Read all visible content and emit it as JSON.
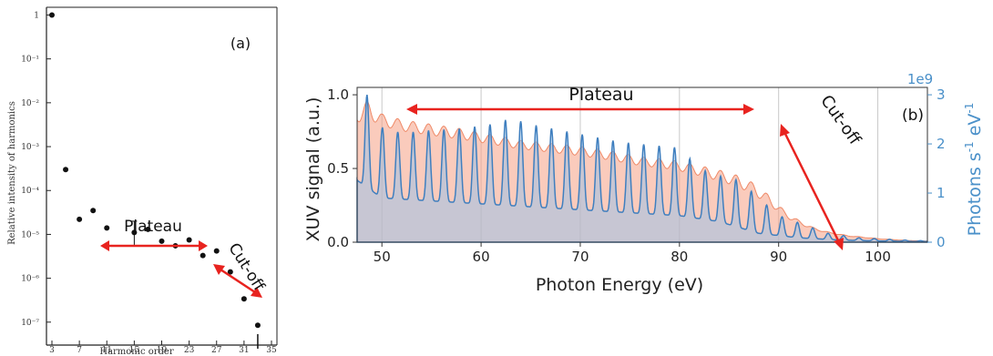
{
  "chart_data": [
    {
      "panel_label": "(a)",
      "type": "scatter",
      "ylabel": "Relative intensity of harmonics",
      "xlabel": "Harmonic order",
      "x_ticks": [
        "3",
        "7",
        "11",
        "15",
        "19",
        "23",
        "27",
        "31",
        "35"
      ],
      "y_ticks": [
        "1",
        "10⁻¹",
        "10⁻²",
        "10⁻³",
        "10⁻⁴",
        "10⁻⁵",
        "10⁻⁶",
        "10⁻⁷"
      ],
      "y_scale": "log",
      "xlim": [
        3,
        35
      ],
      "ylim": [
        3e-08,
        1.5
      ],
      "x": [
        3,
        5,
        7,
        9,
        11,
        15,
        17,
        19,
        21,
        23,
        25,
        27,
        29,
        31,
        33
      ],
      "y": [
        1,
        0.0003,
        2.2e-05,
        3.5e-05,
        1.4e-05,
        1.1e-05,
        1.3e-05,
        7e-06,
        5.5e-06,
        7.5e-06,
        3.3e-06,
        4.2e-06,
        1.4e-06,
        3.4e-07,
        8.5e-08
      ],
      "annotations": {
        "plateau": "Plateau",
        "cutoff": "Cut-off"
      }
    },
    {
      "panel_label": "(b)",
      "type": "area",
      "xlabel": "Photon Energy (eV)",
      "ylabel": "XUV signal (a.u.)",
      "y2label_main": "Photons s",
      "y2label_sup1": "-1",
      "y2label_mid": " eV",
      "y2label_sup2": "-1",
      "y2_offset_label": "1e9",
      "xlim": [
        47.5,
        105
      ],
      "ylim": [
        0,
        1.05
      ],
      "y2lim": [
        0,
        3.15
      ],
      "x_ticks": [
        50,
        60,
        70,
        80,
        90,
        100
      ],
      "y_ticks": [
        "0.0",
        "0.5",
        "1.0"
      ],
      "y2_ticks": [
        "0",
        "1",
        "2",
        "3"
      ],
      "grid": "vertical",
      "series": [
        {
          "color": "#f5a185",
          "envelope_x": [
            47.5,
            48.5,
            50,
            52,
            55,
            58,
            61,
            64,
            67,
            70,
            73,
            76,
            79,
            82,
            84,
            86,
            87.5,
            89,
            90.5,
            92,
            93.5,
            95,
            97,
            100,
            103,
            105
          ],
          "envelope_y": [
            0.92,
            0.96,
            0.87,
            0.83,
            0.8,
            0.77,
            0.73,
            0.69,
            0.67,
            0.65,
            0.62,
            0.58,
            0.56,
            0.52,
            0.49,
            0.45,
            0.4,
            0.32,
            0.22,
            0.15,
            0.1,
            0.07,
            0.045,
            0.025,
            0.012,
            0.008
          ],
          "baseline_x": [
            47.5,
            50,
            55,
            60,
            65,
            70,
            75,
            80,
            85,
            88,
            91,
            94,
            97,
            100,
            105
          ],
          "baseline_y": [
            0.55,
            0.6,
            0.55,
            0.52,
            0.49,
            0.44,
            0.39,
            0.34,
            0.22,
            0.13,
            0.07,
            0.05,
            0.03,
            0.015,
            0.005
          ]
        },
        {
          "color": "#5b9bd5",
          "peak_spacing": 1.55,
          "peak_start": 48.5,
          "peak_heights_x": [
            48.5,
            50,
            52,
            55,
            58,
            61,
            63,
            65,
            68,
            71,
            74,
            77,
            80,
            82,
            84,
            86,
            88,
            90,
            92.5,
            95,
            98,
            101,
            104
          ],
          "peak_heights_y": [
            1.0,
            0.78,
            0.74,
            0.76,
            0.77,
            0.8,
            0.84,
            0.8,
            0.76,
            0.72,
            0.68,
            0.66,
            0.64,
            0.5,
            0.45,
            0.42,
            0.3,
            0.18,
            0.12,
            0.06,
            0.03,
            0.02,
            0.01
          ],
          "trough_x": [
            47.5,
            50,
            55,
            60,
            65,
            70,
            75,
            80,
            84,
            88,
            92,
            96,
            100,
            105
          ],
          "trough_y": [
            0.42,
            0.3,
            0.28,
            0.26,
            0.24,
            0.22,
            0.2,
            0.18,
            0.14,
            0.06,
            0.03,
            0.015,
            0.008,
            0.004
          ]
        }
      ],
      "annotations": {
        "plateau": "Plateau",
        "cutoff": "Cut-off"
      },
      "colors": {
        "arrow": "#e8231f",
        "axis2": "#4a90c9",
        "grid": "#c8c8c8"
      }
    }
  ]
}
